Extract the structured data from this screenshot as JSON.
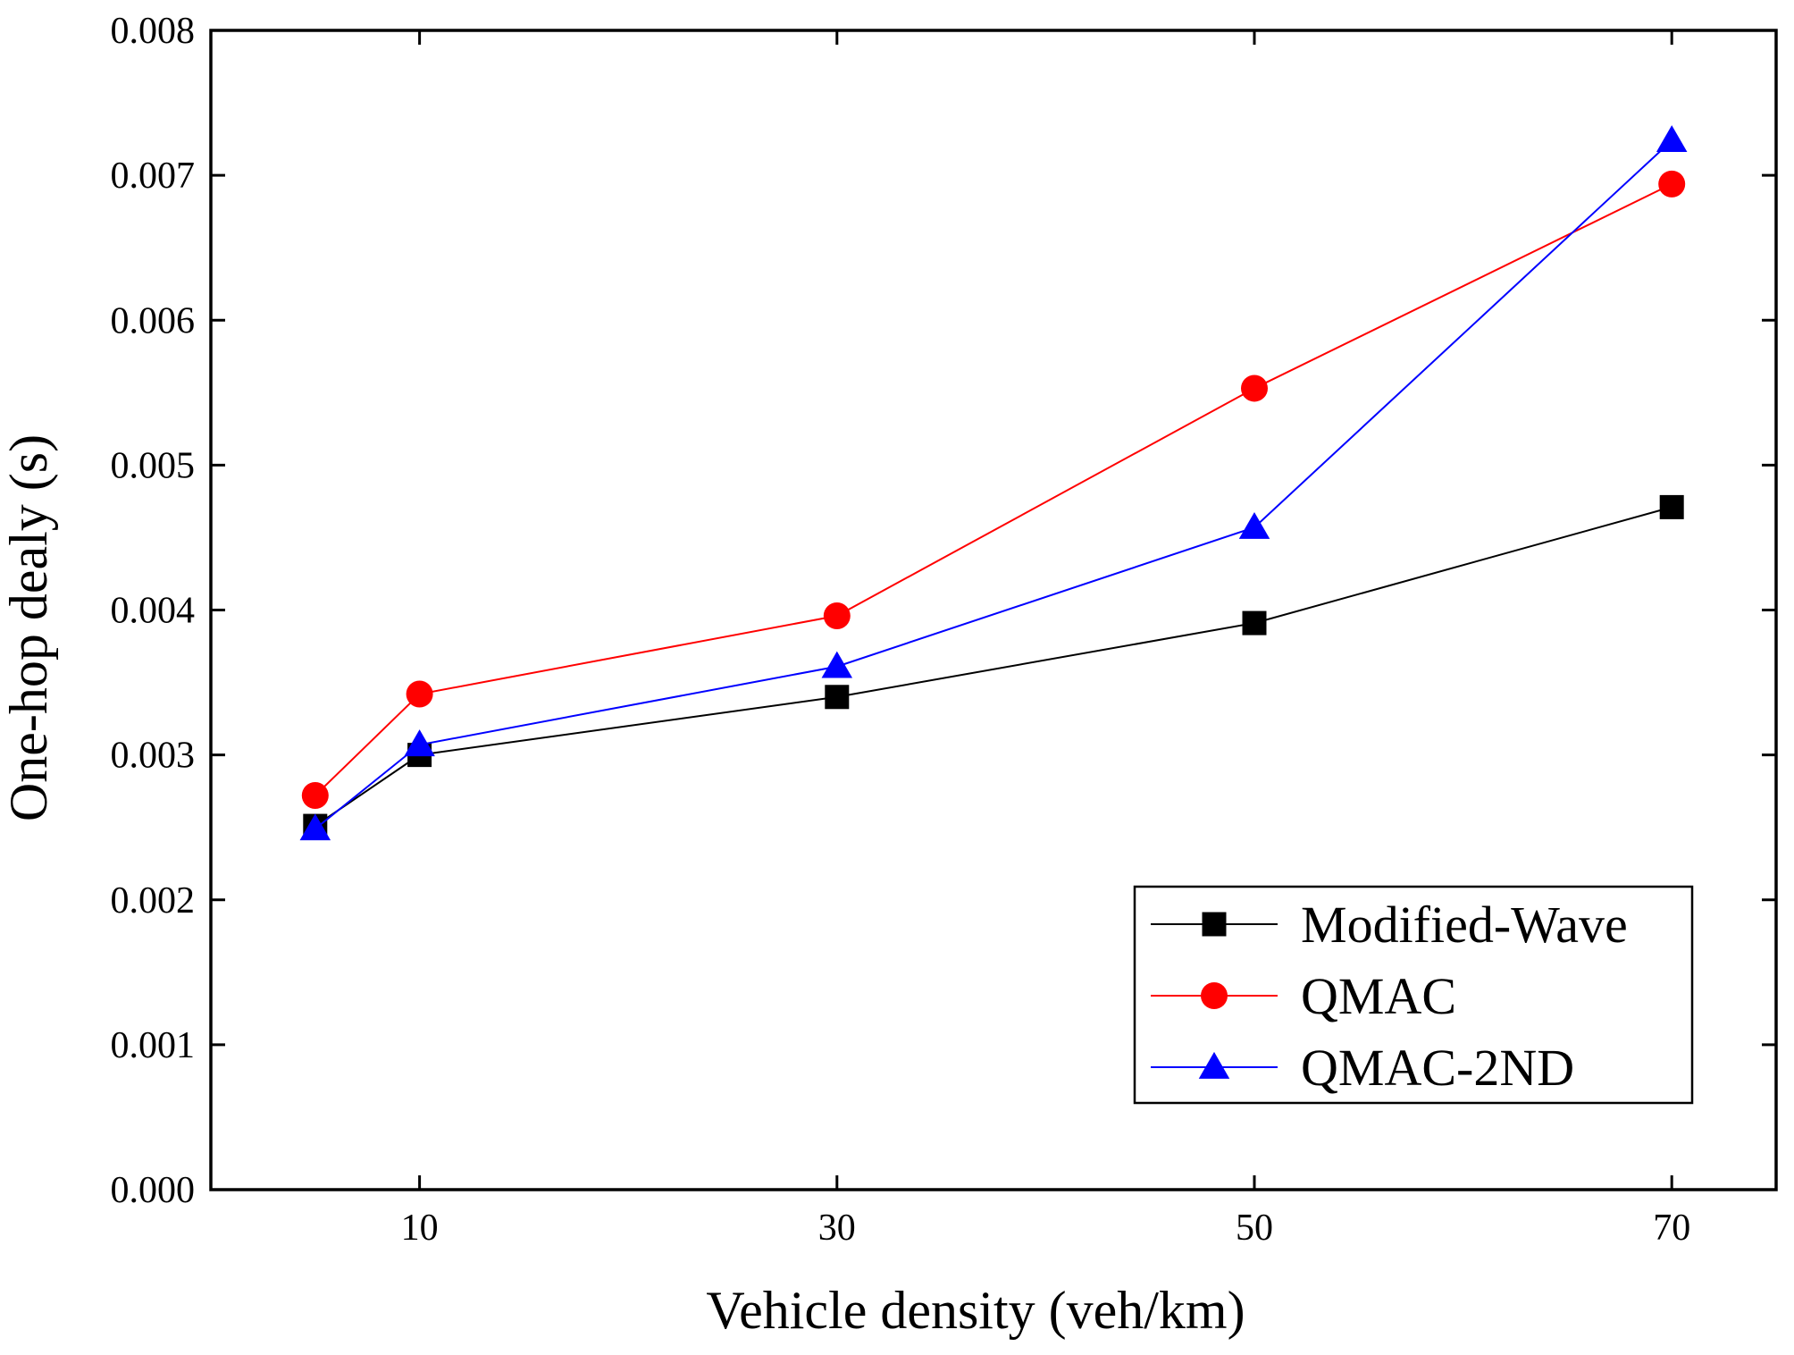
{
  "chart_data": {
    "type": "line",
    "title": "",
    "xlabel": "Vehicle density (veh/km)",
    "ylabel": "One-hop dealy (s)",
    "xlim": [
      0,
      75
    ],
    "ylim": [
      0,
      0.008
    ],
    "xticks": [
      10,
      30,
      50,
      70
    ],
    "xtick_labels": [
      "10",
      "30",
      "50",
      "70"
    ],
    "yticks": [
      0,
      0.001,
      0.002,
      0.003,
      0.004,
      0.005,
      0.006,
      0.007,
      0.008
    ],
    "ytick_labels": [
      "0.000",
      "0.001",
      "0.002",
      "0.003",
      "0.004",
      "0.005",
      "0.006",
      "0.007",
      "0.008"
    ],
    "legend_position": "bottom-right",
    "grid": false,
    "series": [
      {
        "name": "Modified-Wave",
        "color": "#000000",
        "marker": "square",
        "x": [
          5,
          10,
          30,
          50,
          70
        ],
        "y": [
          0.00251,
          0.003,
          0.0034,
          0.00391,
          0.00471
        ]
      },
      {
        "name": "QMAC",
        "color": "#ff0000",
        "marker": "circle",
        "x": [
          5,
          10,
          30,
          50,
          70
        ],
        "y": [
          0.00272,
          0.00342,
          0.00396,
          0.00553,
          0.00694
        ]
      },
      {
        "name": "QMAC-2ND",
        "color": "#0000ff",
        "marker": "triangle",
        "x": [
          5,
          10,
          30,
          50,
          70
        ],
        "y": [
          0.00249,
          0.00307,
          0.00361,
          0.00457,
          0.00724
        ]
      }
    ]
  }
}
